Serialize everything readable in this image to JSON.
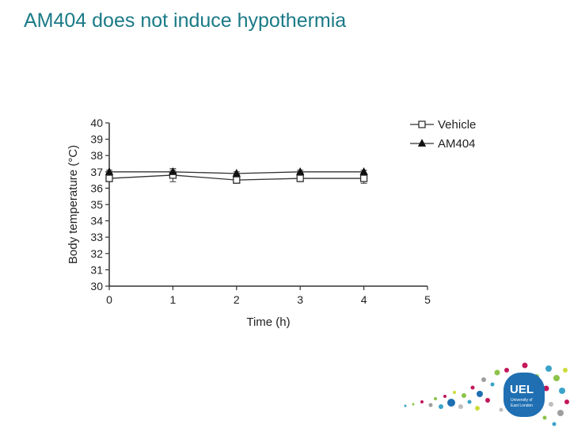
{
  "slide": {
    "title": "AM404 does not induce hypothermia"
  },
  "logo": {
    "name": "University of East London logo",
    "text_main": "UEL",
    "text_sub_1": "University of",
    "text_sub_2": "East London",
    "color": "#1f6fb2"
  },
  "chart_data": {
    "type": "line",
    "xlabel": "Time (h)",
    "ylabel": "Body temperature (°C)",
    "xlim": [
      0,
      5
    ],
    "ylim": [
      30,
      40
    ],
    "xticks": [
      0,
      1,
      2,
      3,
      4,
      5
    ],
    "yticks": [
      30,
      31,
      32,
      33,
      34,
      35,
      36,
      37,
      38,
      39,
      40
    ],
    "grid": false,
    "legend_position": "top-right",
    "series": [
      {
        "name": "Vehicle",
        "marker": "open-square",
        "x": [
          0,
          1,
          2,
          3,
          4
        ],
        "y": [
          36.6,
          36.8,
          36.5,
          36.6,
          36.6
        ],
        "error": [
          0.2,
          0.4,
          0.2,
          0.2,
          0.3
        ]
      },
      {
        "name": "AM404",
        "marker": "filled-triangle",
        "x": [
          0,
          1,
          2,
          3,
          4
        ],
        "y": [
          37.0,
          37.0,
          36.9,
          37.0,
          37.0
        ],
        "error": [
          0.1,
          0.1,
          0.1,
          0.1,
          0.1
        ]
      }
    ]
  }
}
